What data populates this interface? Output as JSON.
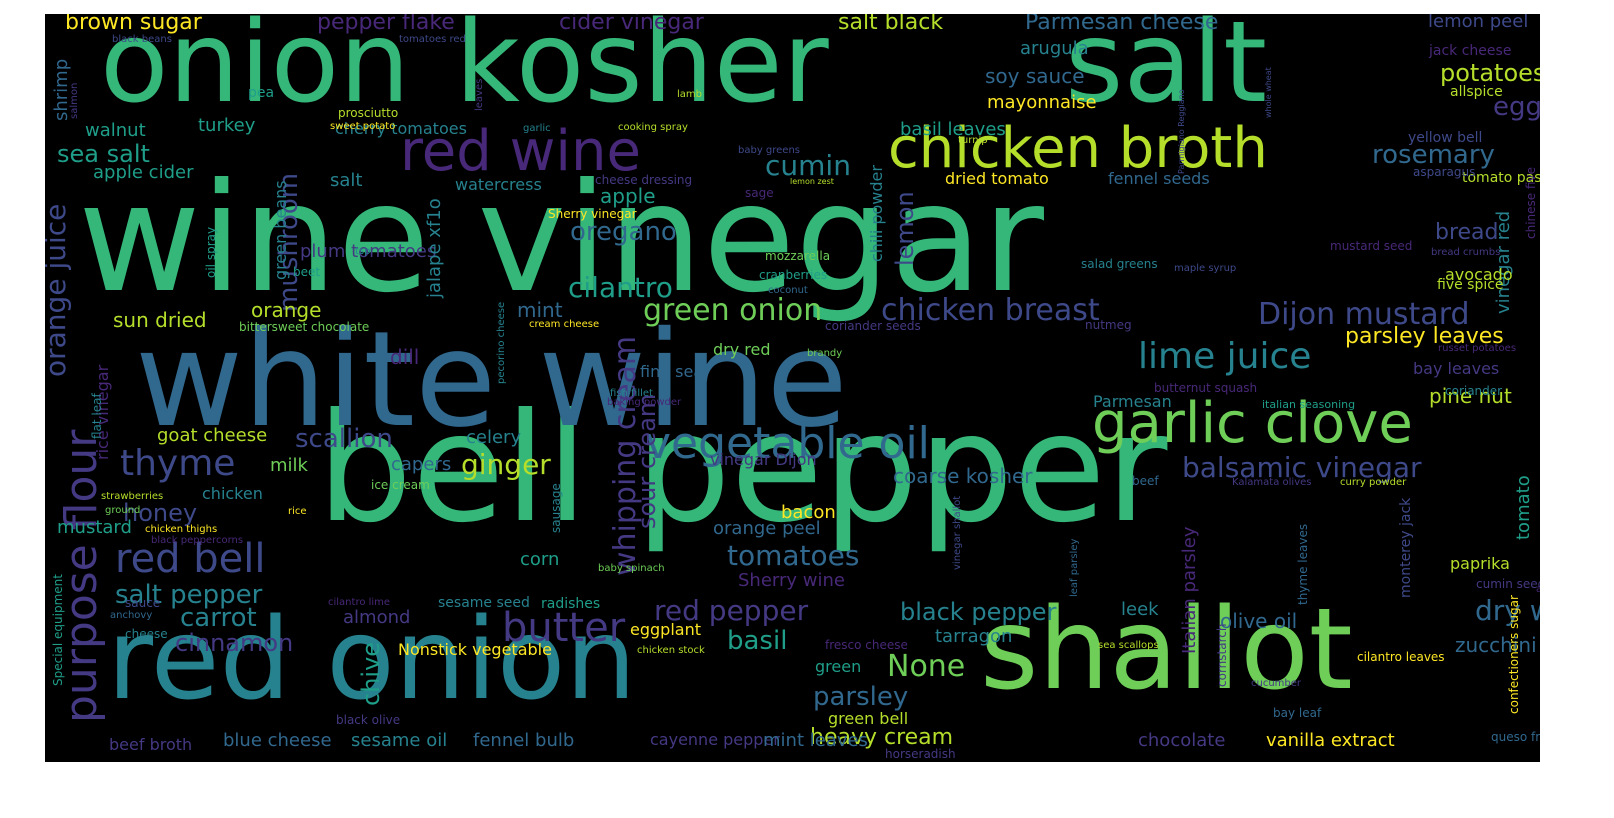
{
  "palette": {
    "dp": "#482878",
    "pu": "#443983",
    "db": "#3e4989",
    "bl": "#31688e",
    "tl": "#26828e",
    "tg": "#1f9e89",
    "gr": "#35b779",
    "lg": "#6ece58",
    "yg": "#b5de2b",
    "yl": "#fde725"
  },
  "words": [
    {
      "text": "wine vinegar",
      "c": "gr"
    },
    {
      "text": "bell pepper",
      "c": "gr"
    },
    {
      "text": "white wine",
      "c": "bl"
    },
    {
      "text": "onion",
      "c": "gr"
    },
    {
      "text": "kosher",
      "c": "gr"
    },
    {
      "text": "salt",
      "c": "gr"
    },
    {
      "text": "red onion",
      "c": "tl"
    },
    {
      "text": "shallot",
      "c": "lg"
    },
    {
      "text": "chicken broth",
      "c": "yg"
    },
    {
      "text": "red wine",
      "c": "dp"
    },
    {
      "text": "garlic clove",
      "c": "lg"
    },
    {
      "text": "vegetable oil",
      "c": "bl"
    },
    {
      "text": "balsamic vinegar",
      "c": "db"
    },
    {
      "text": "lime juice",
      "c": "tl"
    },
    {
      "text": "Dijon mustard",
      "c": "db"
    },
    {
      "text": "chicken breast",
      "c": "db"
    },
    {
      "text": "green onion",
      "c": "lg"
    },
    {
      "text": "purpose flour",
      "c": "pu"
    },
    {
      "text": "orange juice",
      "c": "db"
    },
    {
      "text": "red bell",
      "c": "db"
    },
    {
      "text": "thyme",
      "c": "db"
    },
    {
      "text": "butter",
      "c": "pu"
    },
    {
      "text": "whipping cream",
      "c": "pu"
    },
    {
      "text": "sour cream",
      "c": "pu"
    },
    {
      "text": "scallion",
      "c": "db"
    },
    {
      "text": "ginger",
      "c": "yg"
    },
    {
      "text": "cilantro",
      "c": "tg"
    },
    {
      "text": "oregano",
      "c": "bl"
    },
    {
      "text": "cumin",
      "c": "tl"
    },
    {
      "text": "rosemary",
      "c": "bl"
    },
    {
      "text": "egg",
      "c": "pu"
    },
    {
      "text": "potatoes",
      "c": "yg"
    },
    {
      "text": "mushroom",
      "c": "db"
    },
    {
      "text": "tomatoes",
      "c": "bl"
    },
    {
      "text": "red pepper",
      "c": "pu"
    },
    {
      "text": "dry white",
      "c": "bl"
    },
    {
      "text": "black pepper",
      "c": "tl"
    },
    {
      "text": "salt pepper",
      "c": "tl"
    },
    {
      "text": "None",
      "c": "lg"
    },
    {
      "text": "heavy cream",
      "c": "yg"
    },
    {
      "text": "carrot",
      "c": "tl"
    },
    {
      "text": "cinnamon",
      "c": "pu"
    },
    {
      "text": "basil",
      "c": "tg"
    },
    {
      "text": "parsley",
      "c": "bl"
    },
    {
      "text": "honey",
      "c": "db"
    },
    {
      "text": "chive",
      "c": "tg"
    },
    {
      "text": "lemon",
      "c": "db"
    },
    {
      "text": "bread",
      "c": "db"
    },
    {
      "text": "sea salt",
      "c": "tg"
    },
    {
      "text": "parsley leaves",
      "c": "yl"
    },
    {
      "text": "pine nut",
      "c": "yg"
    },
    {
      "text": "coarse kosher",
      "c": "bl"
    },
    {
      "text": "Italian parsley",
      "c": "dp"
    },
    {
      "text": "vinegar red",
      "c": "tl"
    },
    {
      "text": "tomato",
      "c": "tg"
    },
    {
      "text": "brown sugar",
      "c": "yl"
    },
    {
      "text": "pepper flake",
      "c": "dp"
    },
    {
      "text": "cider vinegar",
      "c": "dp"
    },
    {
      "text": "salt black",
      "c": "yg"
    },
    {
      "text": "Parmesan cheese",
      "c": "bl"
    },
    {
      "text": "lemon peel",
      "c": "db"
    },
    {
      "text": "soy sauce",
      "c": "bl"
    },
    {
      "text": "arugula",
      "c": "tl"
    },
    {
      "text": "mayonnaise",
      "c": "yl"
    },
    {
      "text": "basil leaves",
      "c": "tg"
    },
    {
      "text": "apple cider",
      "c": "tg"
    },
    {
      "text": "walnut",
      "c": "tg"
    },
    {
      "text": "turkey",
      "c": "tg"
    },
    {
      "text": "apple",
      "c": "tg"
    },
    {
      "text": "orange",
      "c": "yg"
    },
    {
      "text": "sun dried",
      "c": "yg"
    },
    {
      "text": "mint",
      "c": "bl"
    },
    {
      "text": "plum tomatoes",
      "c": "pu"
    },
    {
      "text": "dill",
      "c": "dp"
    },
    {
      "text": "goat cheese",
      "c": "yg"
    },
    {
      "text": "celery",
      "c": "tl"
    },
    {
      "text": "milk",
      "c": "lg"
    },
    {
      "text": "capers",
      "c": "bl"
    },
    {
      "text": "chicken",
      "c": "tl"
    },
    {
      "text": "mustard",
      "c": "tg"
    },
    {
      "text": "bacon",
      "c": "yl"
    },
    {
      "text": "orange peel",
      "c": "bl"
    },
    {
      "text": "corn",
      "c": "tg"
    },
    {
      "text": "Sherry wine",
      "c": "dp"
    },
    {
      "text": "almond",
      "c": "pu"
    },
    {
      "text": "leek",
      "c": "tl"
    },
    {
      "text": "olive oil",
      "c": "bl"
    },
    {
      "text": "zucchini",
      "c": "bl"
    },
    {
      "text": "tarragon",
      "c": "tl"
    },
    {
      "text": "paprika",
      "c": "yg"
    },
    {
      "text": "avocado",
      "c": "yg"
    },
    {
      "text": "five spice",
      "c": "yg"
    },
    {
      "text": "bay leaves",
      "c": "pu"
    },
    {
      "text": "Parmesan",
      "c": "tl"
    },
    {
      "text": "fennel seeds",
      "c": "bl"
    },
    {
      "text": "dried tomato",
      "c": "yl"
    },
    {
      "text": "tomato paste",
      "c": "yg"
    },
    {
      "text": "salt",
      "c": "tl"
    },
    {
      "text": "watercress",
      "c": "tl"
    },
    {
      "text": "cherry tomatoes",
      "c": "tl"
    },
    {
      "text": "green beans",
      "c": "tl"
    },
    {
      "text": "chili powder",
      "c": "tl"
    },
    {
      "text": "jalape xf1o",
      "c": "tl"
    },
    {
      "text": "rice vinegar",
      "c": "dp"
    },
    {
      "text": "green",
      "c": "tg"
    },
    {
      "text": "green bell",
      "c": "yg"
    },
    {
      "text": "eggplant",
      "c": "yl"
    },
    {
      "text": "Nonstick vegetable",
      "c": "yl"
    },
    {
      "text": "beef broth",
      "c": "pu"
    },
    {
      "text": "blue cheese",
      "c": "bl"
    },
    {
      "text": "sesame oil",
      "c": "tl"
    },
    {
      "text": "fennel bulb",
      "c": "bl"
    },
    {
      "text": "cayenne pepper",
      "c": "pu"
    },
    {
      "text": "mint leaves",
      "c": "bl"
    },
    {
      "text": "chocolate",
      "c": "pu"
    },
    {
      "text": "vanilla extract",
      "c": "yl"
    },
    {
      "text": "sesame seed",
      "c": "tl"
    },
    {
      "text": "radishes",
      "c": "tg"
    },
    {
      "text": "vinegar Dijon",
      "c": "pu"
    },
    {
      "text": "fine sea",
      "c": "bl"
    },
    {
      "text": "dry red",
      "c": "lg"
    },
    {
      "text": "monterey jack",
      "c": "db"
    },
    {
      "text": "confectioners sugar",
      "c": "yl"
    },
    {
      "text": "shrimp",
      "c": "bl"
    },
    {
      "text": "black beans",
      "c": "db"
    },
    {
      "text": "tomatoes red",
      "c": "db"
    },
    {
      "text": "leaves",
      "c": "pu"
    },
    {
      "text": "pea",
      "c": "tg"
    },
    {
      "text": "salmon",
      "c": "pu"
    },
    {
      "text": "lamb",
      "c": "yg"
    },
    {
      "text": "garlic",
      "c": "tl"
    },
    {
      "text": "cooking spray",
      "c": "yg"
    },
    {
      "text": "prosciutto",
      "c": "yg"
    },
    {
      "text": "sweet potato",
      "c": "yl"
    },
    {
      "text": "baby greens",
      "c": "db"
    },
    {
      "text": "lemon zest",
      "c": "yg"
    },
    {
      "text": "turnip",
      "c": "yg"
    },
    {
      "text": "Parmigiano Reggiano",
      "c": "db"
    },
    {
      "text": "whole wheat",
      "c": "db"
    },
    {
      "text": "allspice",
      "c": "yg"
    },
    {
      "text": "jack cheese",
      "c": "dp"
    },
    {
      "text": "yellow bell",
      "c": "db"
    },
    {
      "text": "chinese five",
      "c": "dp"
    },
    {
      "text": "asparagus",
      "c": "db"
    },
    {
      "text": "cheese dressing",
      "c": "pu"
    },
    {
      "text": "Sherry vinegar",
      "c": "yl"
    },
    {
      "text": "sage",
      "c": "dp"
    },
    {
      "text": "oil spray",
      "c": "tg"
    },
    {
      "text": "tsp",
      "c": "tl"
    },
    {
      "text": "beet",
      "c": "tg"
    },
    {
      "text": "mozzarella",
      "c": "lg"
    },
    {
      "text": "cranberries",
      "c": "tg"
    },
    {
      "text": "coconut",
      "c": "bl"
    },
    {
      "text": "bittersweet chocolate",
      "c": "lg"
    },
    {
      "text": "cream cheese",
      "c": "yl"
    },
    {
      "text": "coriander seeds",
      "c": "pu"
    },
    {
      "text": "nutmeg",
      "c": "pu"
    },
    {
      "text": "salad greens",
      "c": "tl"
    },
    {
      "text": "maple syrup",
      "c": "db"
    },
    {
      "text": "mustard seed",
      "c": "dp"
    },
    {
      "text": "bread crumbs",
      "c": "pu"
    },
    {
      "text": "russet potatoes",
      "c": "dp"
    },
    {
      "text": "butternut squash",
      "c": "dp"
    },
    {
      "text": "coriander",
      "c": "tl"
    },
    {
      "text": "italian seasoning",
      "c": "tg"
    },
    {
      "text": "fish fillet",
      "c": "tl"
    },
    {
      "text": "baking powder",
      "c": "dp"
    },
    {
      "text": "pecorino cheese",
      "c": "tl"
    },
    {
      "text": "brandy",
      "c": "lg"
    },
    {
      "text": "flat leaf",
      "c": "tl"
    },
    {
      "text": "ice cream",
      "c": "lg"
    },
    {
      "text": "strawberries",
      "c": "yg"
    },
    {
      "text": "ground",
      "c": "lg"
    },
    {
      "text": "rice",
      "c": "yl"
    },
    {
      "text": "chicken thighs",
      "c": "yl"
    },
    {
      "text": "black peppercorns",
      "c": "dp"
    },
    {
      "text": "sausage",
      "c": "tl"
    },
    {
      "text": "Special equipment",
      "c": "tg"
    },
    {
      "text": "sauce",
      "c": "db"
    },
    {
      "text": "anchovy",
      "c": "bl"
    },
    {
      "text": "cheese",
      "c": "tl"
    },
    {
      "text": "cilantro lime",
      "c": "dp"
    },
    {
      "text": "baby spinach",
      "c": "lg"
    },
    {
      "text": "beef",
      "c": "bl"
    },
    {
      "text": "Kalamata olives",
      "c": "pu"
    },
    {
      "text": "curry powder",
      "c": "yg"
    },
    {
      "text": "apricot",
      "c": "dp"
    },
    {
      "text": "cumin seeds",
      "c": "pu"
    },
    {
      "text": "thyme leaves",
      "c": "bl"
    },
    {
      "text": "leaf parsley",
      "c": "bl"
    },
    {
      "text": "vinegar shallot",
      "c": "db"
    },
    {
      "text": "chicken stock",
      "c": "yg"
    },
    {
      "text": "fresco cheese",
      "c": "dp"
    },
    {
      "text": "sea scallops",
      "c": "yg"
    },
    {
      "text": "cilantro leaves",
      "c": "yl"
    },
    {
      "text": "cornstarch",
      "c": "pu"
    },
    {
      "text": "cucumber",
      "c": "pu"
    },
    {
      "text": "bay leaf",
      "c": "bl"
    },
    {
      "text": "black olive",
      "c": "pu"
    },
    {
      "text": "horseradish",
      "c": "pu"
    },
    {
      "text": "queso fresco",
      "c": "bl"
    }
  ]
}
